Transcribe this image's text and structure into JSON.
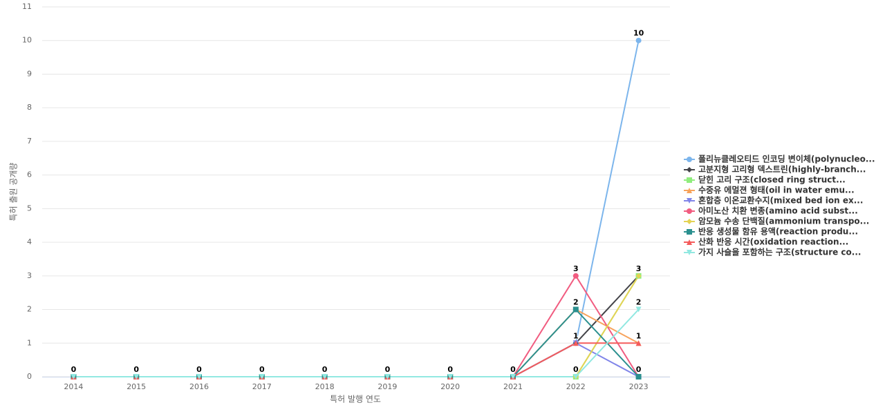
{
  "chart_data": {
    "type": "line",
    "x_label": "특허 발행 연도",
    "y_label": "특허 출원 공개량",
    "categories": [
      "2014",
      "2015",
      "2016",
      "2017",
      "2018",
      "2019",
      "2020",
      "2021",
      "2022",
      "2023"
    ],
    "ylim": [
      0,
      11
    ],
    "yticks": [
      0,
      1,
      2,
      3,
      4,
      5,
      6,
      7,
      8,
      9,
      10,
      11
    ],
    "grid": true,
    "legend": "right",
    "series": [
      {
        "name": "폴리뉴클레오티드 인코딩 변이체(polynucleo...",
        "color": "#7cb5ec",
        "marker": "circle",
        "values": [
          0,
          0,
          0,
          0,
          0,
          0,
          0,
          0,
          1,
          10
        ]
      },
      {
        "name": "고분지형 고리형 덱스트린(highly-branch...",
        "color": "#434348",
        "marker": "diamond",
        "values": [
          0,
          0,
          0,
          0,
          0,
          0,
          0,
          0,
          1,
          3
        ]
      },
      {
        "name": "닫힌 고리 구조(closed ring struct...",
        "color": "#90ed7d",
        "marker": "square",
        "values": [
          0,
          0,
          0,
          0,
          0,
          0,
          0,
          0,
          0,
          3
        ]
      },
      {
        "name": "수중유 에멀젼 형태(oil in water emu...",
        "color": "#f7a35c",
        "marker": "triangle",
        "values": [
          0,
          0,
          0,
          0,
          0,
          0,
          0,
          0,
          2,
          1
        ]
      },
      {
        "name": "혼합층 이온교환수지(mixed bed ion ex...",
        "color": "#8085e9",
        "marker": "triangle-down",
        "values": [
          0,
          0,
          0,
          0,
          0,
          0,
          0,
          0,
          1,
          0
        ]
      },
      {
        "name": "아미노산 치환 변종(amino acid subst...",
        "color": "#f15c80",
        "marker": "circle",
        "values": [
          0,
          0,
          0,
          0,
          0,
          0,
          0,
          0,
          3,
          0
        ]
      },
      {
        "name": "암모늄 수송 단백질(ammonium transpo...",
        "color": "#e4d354",
        "marker": "diamond",
        "values": [
          0,
          0,
          0,
          0,
          0,
          0,
          0,
          0,
          0,
          3
        ]
      },
      {
        "name": "반응 생성물 함유 용액(reaction produ...",
        "color": "#2b908f",
        "marker": "square",
        "values": [
          0,
          0,
          0,
          0,
          0,
          0,
          0,
          0,
          2,
          0
        ]
      },
      {
        "name": "산화 반응 시간(oxidation reaction...",
        "color": "#f45b5b",
        "marker": "triangle",
        "values": [
          0,
          0,
          0,
          0,
          0,
          0,
          0,
          0,
          1,
          1
        ]
      },
      {
        "name": "가지 사슬을 포함하는 구조(structure co...",
        "color": "#91e8e1",
        "marker": "triangle-down",
        "values": [
          0,
          0,
          0,
          0,
          0,
          0,
          0,
          0,
          0,
          2
        ]
      }
    ]
  }
}
